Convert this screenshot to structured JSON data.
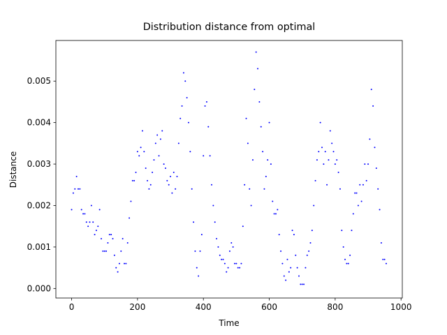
{
  "chart_data": {
    "type": "scatter",
    "title": "Distribution distance from optimal",
    "x_label": "Time",
    "y_label": "Distance",
    "color": "#0000ff",
    "x": [
      0,
      5,
      10,
      15,
      20,
      25,
      30,
      35,
      40,
      45,
      50,
      55,
      60,
      65,
      70,
      75,
      80,
      85,
      90,
      95,
      100,
      105,
      110,
      115,
      120,
      125,
      130,
      135,
      140,
      145,
      150,
      155,
      160,
      165,
      170,
      175,
      180,
      185,
      190,
      195,
      200,
      205,
      210,
      215,
      220,
      225,
      230,
      235,
      240,
      245,
      250,
      255,
      260,
      265,
      270,
      275,
      280,
      285,
      290,
      295,
      300,
      305,
      310,
      315,
      320,
      325,
      330,
      335,
      340,
      345,
      350,
      355,
      360,
      365,
      370,
      375,
      380,
      385,
      390,
      395,
      400,
      405,
      410,
      415,
      420,
      425,
      430,
      435,
      440,
      445,
      450,
      455,
      460,
      465,
      470,
      475,
      480,
      485,
      490,
      495,
      500,
      505,
      510,
      515,
      520,
      525,
      530,
      535,
      540,
      545,
      550,
      555,
      560,
      565,
      570,
      575,
      580,
      585,
      590,
      595,
      600,
      605,
      610,
      615,
      620,
      625,
      630,
      635,
      640,
      645,
      650,
      655,
      660,
      665,
      670,
      675,
      680,
      685,
      690,
      695,
      700,
      705,
      710,
      715,
      720,
      725,
      730,
      735,
      740,
      745,
      750,
      755,
      760,
      765,
      770,
      775,
      780,
      785,
      790,
      795,
      800,
      805,
      810,
      815,
      820,
      825,
      830,
      835,
      840,
      845,
      850,
      855,
      860,
      865,
      870,
      875,
      880,
      885,
      890,
      895,
      900,
      905,
      910,
      915,
      920,
      925,
      930,
      935,
      940,
      945,
      950,
      955
    ],
    "values": [
      0.0019,
      0.0023,
      0.0024,
      0.0027,
      0.0024,
      0.0024,
      0.0019,
      0.0018,
      0.0018,
      0.0016,
      0.0015,
      0.0016,
      0.002,
      0.0016,
      0.0013,
      0.0014,
      0.0015,
      0.0019,
      0.0012,
      0.0009,
      0.0009,
      0.0009,
      0.0011,
      0.0013,
      0.0013,
      0.0012,
      0.0008,
      0.0005,
      0.0004,
      0.0006,
      0.0009,
      0.0012,
      0.0006,
      0.0006,
      0.0011,
      0.0017,
      0.0021,
      0.0026,
      0.0026,
      0.0028,
      0.0033,
      0.0032,
      0.0034,
      0.0038,
      0.0033,
      0.0029,
      0.0026,
      0.0024,
      0.0025,
      0.0028,
      0.0031,
      0.0035,
      0.0037,
      0.0032,
      0.0036,
      0.0038,
      0.003,
      0.0029,
      0.0026,
      0.0025,
      0.0027,
      0.0023,
      0.0028,
      0.0024,
      0.0027,
      0.0035,
      0.0041,
      0.0044,
      0.0052,
      0.005,
      0.0046,
      0.004,
      0.0033,
      0.0024,
      0.0016,
      0.0009,
      0.0005,
      0.0003,
      0.0009,
      0.0013,
      0.0032,
      0.0044,
      0.0045,
      0.0039,
      0.0032,
      0.0025,
      0.002,
      0.0016,
      0.0012,
      0.001,
      0.0008,
      0.0007,
      0.0007,
      0.0006,
      0.0004,
      0.0005,
      0.0009,
      0.0011,
      0.001,
      0.0006,
      0.0006,
      0.0005,
      0.0005,
      0.0006,
      0.0015,
      0.0025,
      0.0041,
      0.0035,
      0.0024,
      0.002,
      0.0031,
      0.0048,
      0.0057,
      0.0053,
      0.0045,
      0.0039,
      0.0033,
      0.0024,
      0.0027,
      0.0031,
      0.004,
      0.003,
      0.0021,
      0.0018,
      0.0018,
      0.0019,
      0.0013,
      0.0009,
      0.0006,
      0.0003,
      0.0002,
      0.0007,
      0.0004,
      0.0005,
      0.0014,
      0.0013,
      0.0008,
      0.0005,
      0.0003,
      0.0001,
      0.0001,
      0.0001,
      0.0005,
      0.0008,
      0.0009,
      0.0011,
      0.0014,
      0.002,
      0.0026,
      0.0031,
      0.0033,
      0.004,
      0.0034,
      0.003,
      0.0033,
      0.0025,
      0.0031,
      0.0038,
      0.0035,
      0.0033,
      0.003,
      0.0031,
      0.0028,
      0.0024,
      0.0014,
      0.001,
      0.0007,
      0.0006,
      0.0006,
      0.0008,
      0.0014,
      0.0018,
      0.0023,
      0.0023,
      0.002,
      0.0025,
      0.0021,
      0.0025,
      0.003,
      0.0026,
      0.003,
      0.0036,
      0.0048,
      0.0044,
      0.0034,
      0.0029,
      0.0024,
      0.0019,
      0.0011,
      0.0007,
      0.0007,
      0.0006
    ],
    "xlim": [
      -47.8,
      1003.8
    ],
    "ylim": [
      -0.00023,
      0.00598
    ],
    "xticks": [
      0,
      200,
      400,
      600,
      800,
      1000
    ],
    "yticks": [
      {
        "value": 0,
        "label": "0.000"
      },
      {
        "value": 0.001,
        "label": "0.001"
      },
      {
        "value": 0.002,
        "label": "0.002"
      },
      {
        "value": 0.003,
        "label": "0.003"
      },
      {
        "value": 0.004,
        "label": "0.004"
      },
      {
        "value": 0.005,
        "label": "0.005"
      }
    ],
    "grid": false
  }
}
